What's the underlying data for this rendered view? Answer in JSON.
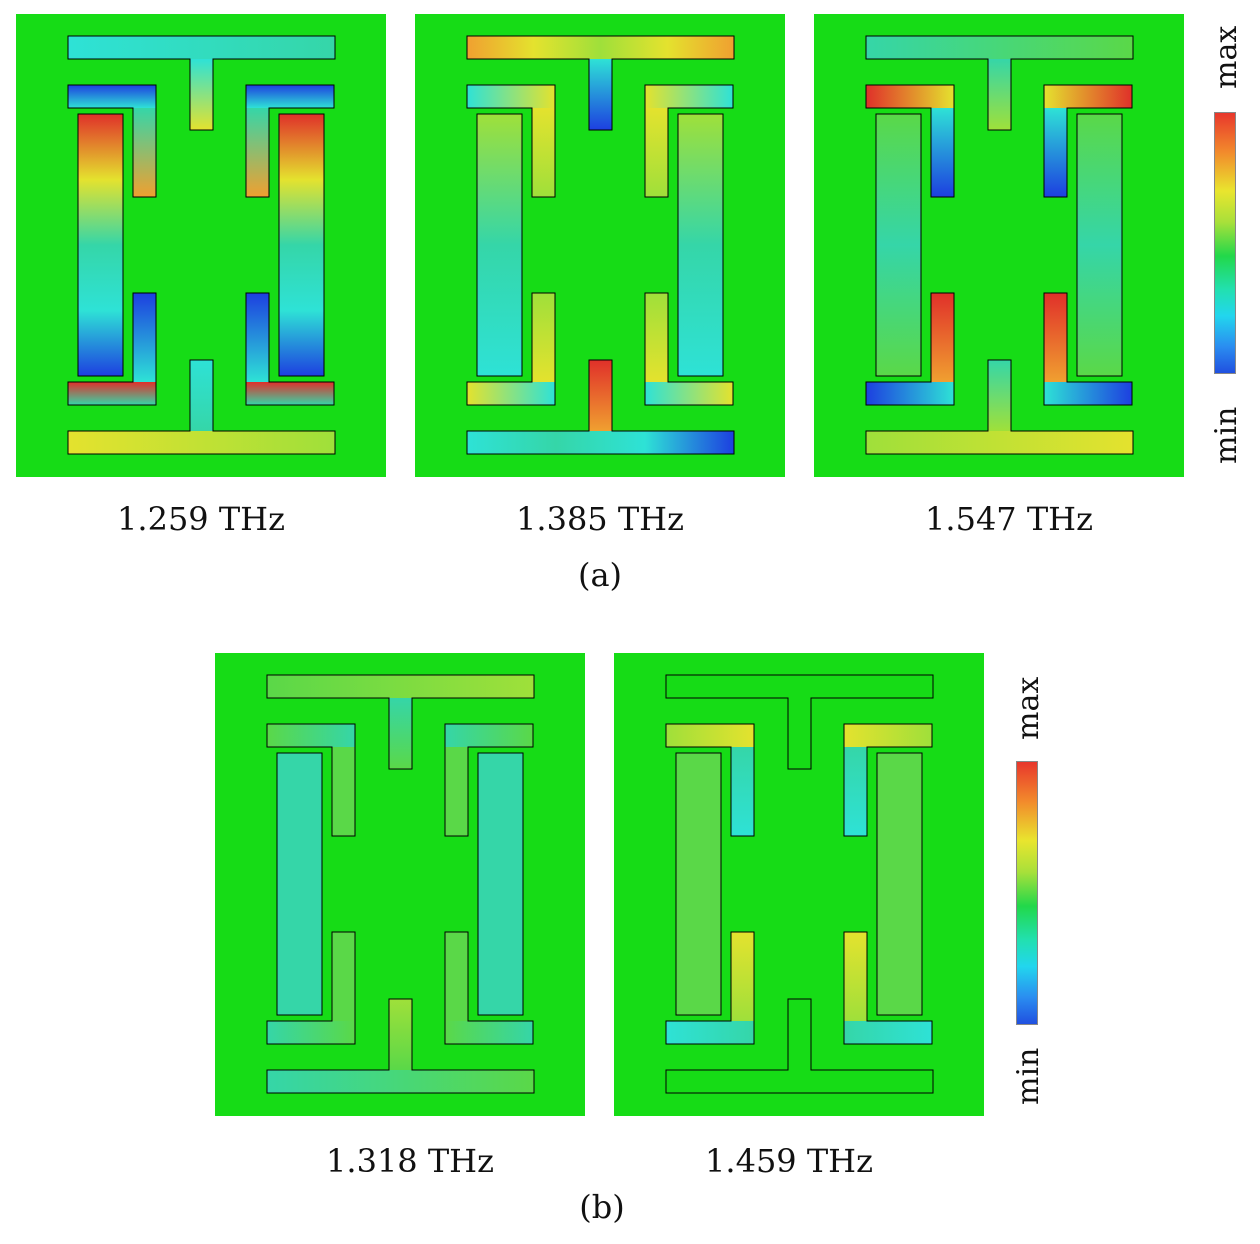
{
  "figure": {
    "part_a": {
      "label": "(a)",
      "panels": [
        {
          "id": "a1",
          "freq": "1.259 THz",
          "mode": "a1"
        },
        {
          "id": "a2",
          "freq": "1.385 THz",
          "mode": "a2"
        },
        {
          "id": "a3",
          "freq": "1.547 THz",
          "mode": "a3"
        }
      ]
    },
    "part_b": {
      "label": "(b)",
      "panels": [
        {
          "id": "b1",
          "freq": "1.318 THz",
          "mode": "b1"
        },
        {
          "id": "b2",
          "freq": "1.459 THz",
          "mode": "b2"
        }
      ]
    },
    "colorbar": {
      "max_label": "max",
      "min_label": "min"
    },
    "colors": {
      "background_field": "#16dc16",
      "structure_outline": "#000000",
      "hot": "#e8372c",
      "warm": "#e9e52e",
      "cool": "#2ee6d0",
      "cold": "#1d3fe0"
    }
  }
}
